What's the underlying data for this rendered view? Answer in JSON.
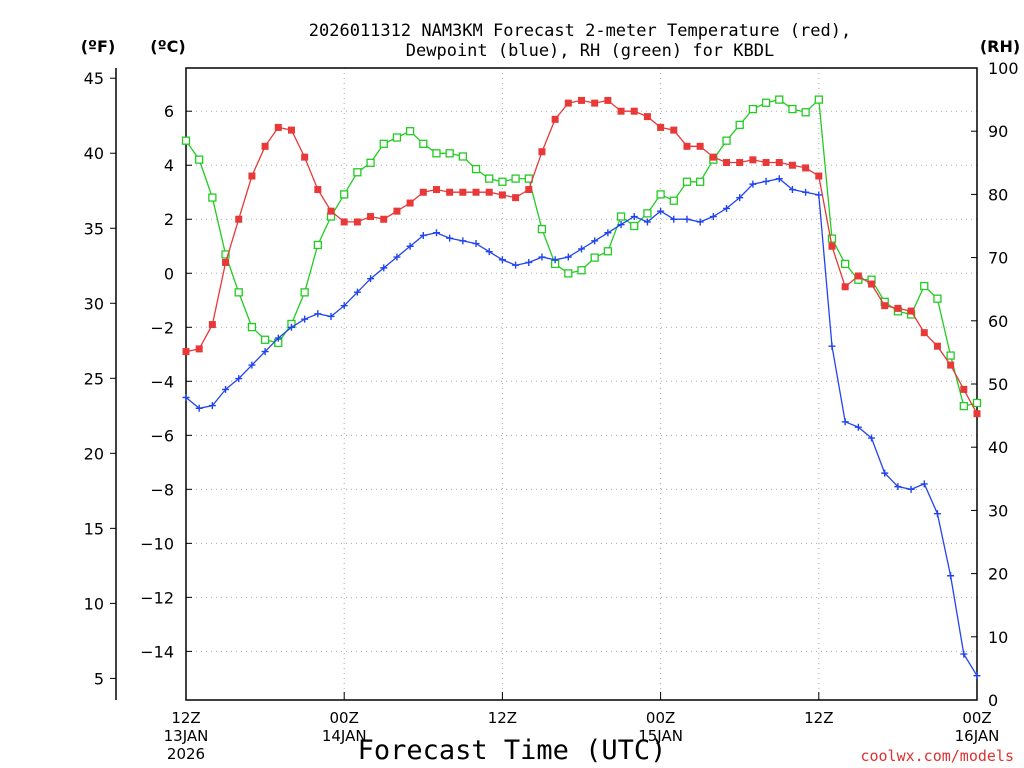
{
  "chart_data": {
    "type": "line",
    "title_line1": "2026011312 NAM3KM Forecast 2-meter Temperature (red),",
    "title_line2": "Dewpoint (blue), RH (green) for KBDL",
    "xlabel": "Forecast Time (UTC)",
    "credit": "coolwx.com/models",
    "units": {
      "fahrenheit": "(ºF)",
      "celsius": "(ºC)",
      "rh": "(RH)"
    },
    "x_range_hours": [
      0,
      60
    ],
    "x_ticks": [
      {
        "hour": 0,
        "line1": "12Z",
        "line2": "13JAN",
        "line3": "2026"
      },
      {
        "hour": 12,
        "line1": "00Z",
        "line2": "14JAN",
        "line3": ""
      },
      {
        "hour": 24,
        "line1": "12Z",
        "line2": "",
        "line3": ""
      },
      {
        "hour": 36,
        "line1": "00Z",
        "line2": "15JAN",
        "line3": ""
      },
      {
        "hour": 48,
        "line1": "12Z",
        "line2": "",
        "line3": ""
      },
      {
        "hour": 60,
        "line1": "00Z",
        "line2": "16JAN",
        "line3": ""
      }
    ],
    "y_celsius_range": [
      -15.8,
      7.6
    ],
    "y_celsius_ticks": [
      "6",
      "4",
      "2",
      "0",
      "−2",
      "−4",
      "−6",
      "−8",
      "−10",
      "−12",
      "−14"
    ],
    "y_fahrenheit_ticks": [
      "45",
      "40",
      "35",
      "30",
      "25",
      "20",
      "15",
      "10",
      "5"
    ],
    "y_rh_range": [
      0,
      100
    ],
    "y_rh_ticks": [
      "100",
      "90",
      "80",
      "70",
      "60",
      "50",
      "40",
      "30",
      "20",
      "10",
      "0"
    ],
    "colors": {
      "temperature": "#e83838",
      "dewpoint": "#2244ee",
      "rh": "#22cc22"
    },
    "series": [
      {
        "name": "Temperature",
        "units": "C",
        "x": [
          0,
          1,
          2,
          3,
          4,
          5,
          6,
          7,
          8,
          9,
          10,
          11,
          12,
          13,
          14,
          15,
          16,
          17,
          18,
          19,
          20,
          21,
          22,
          23,
          24,
          25,
          26,
          27,
          28,
          29,
          30,
          31,
          32,
          33,
          34,
          35,
          36,
          37,
          38,
          39,
          40,
          41,
          42,
          43,
          44,
          45,
          46,
          47,
          48,
          49,
          50,
          51,
          52,
          53,
          54,
          55,
          56,
          57,
          58,
          59,
          60
        ],
        "values": [
          -2.9,
          -2.8,
          -1.9,
          0.4,
          2.0,
          3.6,
          4.7,
          5.4,
          5.3,
          4.3,
          3.1,
          2.3,
          1.9,
          1.9,
          2.1,
          2.0,
          2.3,
          2.6,
          3.0,
          3.1,
          3.0,
          3.0,
          3.0,
          3.0,
          2.9,
          2.8,
          3.1,
          4.5,
          5.7,
          6.3,
          6.4,
          6.3,
          6.4,
          6.0,
          6.0,
          5.8,
          5.4,
          5.3,
          4.7,
          4.7,
          4.3,
          4.1,
          4.1,
          4.2,
          4.1,
          4.1,
          4.0,
          3.9,
          3.6,
          1.0,
          -0.5,
          -0.1,
          -0.4,
          -1.2,
          -1.3,
          -1.4,
          -2.2,
          -2.7,
          -3.4,
          -4.3,
          -5.2
        ]
      },
      {
        "name": "Dewpoint",
        "units": "C",
        "x": [
          0,
          1,
          2,
          3,
          4,
          5,
          6,
          7,
          8,
          9,
          10,
          11,
          12,
          13,
          14,
          15,
          16,
          17,
          18,
          19,
          20,
          21,
          22,
          23,
          24,
          25,
          26,
          27,
          28,
          29,
          30,
          31,
          32,
          33,
          34,
          35,
          36,
          37,
          38,
          39,
          40,
          41,
          42,
          43,
          44,
          45,
          46,
          47,
          48,
          49,
          50,
          51,
          52,
          53,
          54,
          55,
          56,
          57,
          58,
          59,
          60
        ],
        "values": [
          -4.6,
          -5.0,
          -4.9,
          -4.3,
          -3.9,
          -3.4,
          -2.9,
          -2.4,
          -2.0,
          -1.7,
          -1.5,
          -1.6,
          -1.2,
          -0.7,
          -0.2,
          0.2,
          0.6,
          1.0,
          1.4,
          1.5,
          1.3,
          1.2,
          1.1,
          0.8,
          0.5,
          0.3,
          0.4,
          0.6,
          0.5,
          0.6,
          0.9,
          1.2,
          1.5,
          1.8,
          2.1,
          1.9,
          2.3,
          2.0,
          2.0,
          1.9,
          2.1,
          2.4,
          2.8,
          3.3,
          3.4,
          3.5,
          3.1,
          3.0,
          2.9,
          -2.7,
          -5.5,
          -5.7,
          -6.1,
          -7.4,
          -7.9,
          -8.0,
          -7.8,
          -8.9,
          -11.2,
          -14.1,
          -14.9
        ]
      },
      {
        "name": "RH",
        "units": "%",
        "x": [
          0,
          1,
          2,
          3,
          4,
          5,
          6,
          7,
          8,
          9,
          10,
          11,
          12,
          13,
          14,
          15,
          16,
          17,
          18,
          19,
          20,
          21,
          22,
          23,
          24,
          25,
          26,
          27,
          28,
          29,
          30,
          31,
          32,
          33,
          34,
          35,
          36,
          37,
          38,
          39,
          40,
          41,
          42,
          43,
          44,
          45,
          46,
          47,
          48,
          49,
          50,
          51,
          52,
          53,
          54,
          55,
          56,
          57,
          58,
          59,
          60
        ],
        "values": [
          88.5,
          85.5,
          79.5,
          70.5,
          64.5,
          59.0,
          57.0,
          56.5,
          59.5,
          64.5,
          72.0,
          76.5,
          80.0,
          83.5,
          85.0,
          88.0,
          89.0,
          90.0,
          88.0,
          86.5,
          86.5,
          86.0,
          84.0,
          82.5,
          82.0,
          82.5,
          82.5,
          74.5,
          69.0,
          67.5,
          68.0,
          70.0,
          71.0,
          76.5,
          75.0,
          77.0,
          80.0,
          79.0,
          82.0,
          82.0,
          85.5,
          88.5,
          91.0,
          93.5,
          94.5,
          95.0,
          93.5,
          93.0,
          95.0,
          73.0,
          69.0,
          66.5,
          66.5,
          63.0,
          61.5,
          61.0,
          65.5,
          63.5,
          54.5,
          46.5,
          47.0
        ]
      }
    ]
  }
}
